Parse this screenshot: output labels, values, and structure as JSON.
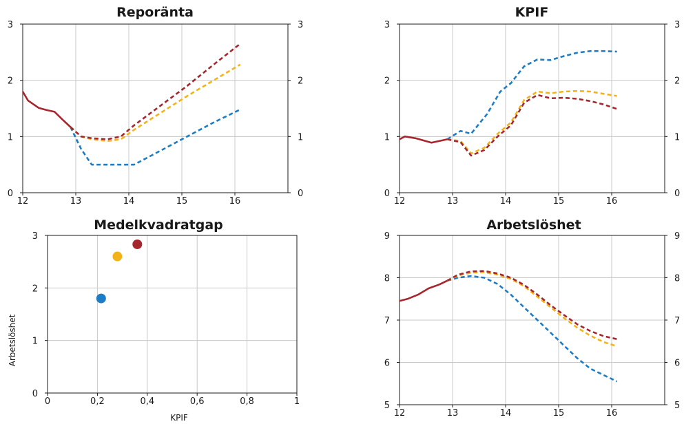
{
  "chart_data": [
    {
      "id": "repo",
      "type": "line",
      "title": "Reporänta",
      "x_ticks": [
        "12",
        "13",
        "14",
        "15",
        "16"
      ],
      "xlim": [
        12,
        17
      ],
      "ylim": [
        0,
        3
      ],
      "y_ticks": [
        "0",
        "1",
        "2",
        "3"
      ],
      "grid": true,
      "series": [
        {
          "color": "#a6262d",
          "dash": "",
          "x": [
            12,
            12.1,
            12.3,
            12.45,
            12.6,
            12.75,
            12.9
          ],
          "y": [
            1.8,
            1.64,
            1.51,
            1.47,
            1.44,
            1.3,
            1.17
          ]
        },
        {
          "color": "#1c7cc4",
          "dash": "6 4",
          "x": [
            12.9,
            13.1,
            13.3,
            13.5,
            13.8,
            14.1,
            14.6,
            15.1,
            15.6,
            16.1
          ],
          "y": [
            1.17,
            0.78,
            0.5,
            0.5,
            0.5,
            0.5,
            0.75,
            1.0,
            1.25,
            1.48
          ]
        },
        {
          "color": "#f2b31a",
          "dash": "6 4",
          "x": [
            12.9,
            13.1,
            13.3,
            13.6,
            13.85,
            14.1,
            14.6,
            15.1,
            15.6,
            16.1
          ],
          "y": [
            1.17,
            1.0,
            0.95,
            0.92,
            0.95,
            1.12,
            1.42,
            1.72,
            2.0,
            2.28
          ]
        },
        {
          "color": "#a6262d",
          "dash": "6 4",
          "x": [
            12.9,
            13.1,
            13.3,
            13.6,
            13.85,
            14.1,
            14.6,
            15.1,
            15.6,
            16.1
          ],
          "y": [
            1.17,
            1.0,
            0.97,
            0.95,
            1.0,
            1.2,
            1.55,
            1.9,
            2.28,
            2.65
          ]
        }
      ]
    },
    {
      "id": "kpif",
      "type": "line",
      "title": "KPIF",
      "x_ticks": [
        "12",
        "13",
        "14",
        "15",
        "16"
      ],
      "xlim": [
        12,
        17
      ],
      "ylim": [
        0,
        3
      ],
      "y_ticks": [
        "0",
        "1",
        "2",
        "3"
      ],
      "grid": true,
      "series": [
        {
          "color": "#a6262d",
          "dash": "",
          "x": [
            12,
            12.1,
            12.3,
            12.6,
            12.9
          ],
          "y": [
            0.95,
            1.0,
            0.97,
            0.89,
            0.95
          ]
        },
        {
          "color": "#1c7cc4",
          "dash": "6 4",
          "x": [
            12.9,
            13.15,
            13.35,
            13.65,
            13.9,
            14.1,
            14.35,
            14.6,
            14.85,
            15.1,
            15.35,
            15.6,
            15.85,
            16.1
          ],
          "y": [
            0.95,
            1.1,
            1.05,
            1.4,
            1.8,
            1.95,
            2.25,
            2.37,
            2.36,
            2.43,
            2.49,
            2.52,
            2.52,
            2.51
          ]
        },
        {
          "color": "#f2b31a",
          "dash": "6 4",
          "x": [
            12.9,
            13.15,
            13.35,
            13.6,
            13.85,
            14.1,
            14.35,
            14.6,
            14.85,
            15.1,
            15.35,
            15.6,
            15.85,
            16.1
          ],
          "y": [
            0.95,
            0.92,
            0.7,
            0.8,
            1.05,
            1.25,
            1.65,
            1.8,
            1.77,
            1.8,
            1.81,
            1.8,
            1.76,
            1.72
          ]
        },
        {
          "color": "#a6262d",
          "dash": "6 4",
          "x": [
            12.9,
            13.15,
            13.35,
            13.6,
            13.85,
            14.1,
            14.35,
            14.6,
            14.85,
            15.1,
            15.35,
            15.6,
            15.85,
            16.1
          ],
          "y": [
            0.95,
            0.9,
            0.66,
            0.76,
            1.0,
            1.2,
            1.6,
            1.74,
            1.68,
            1.69,
            1.67,
            1.63,
            1.57,
            1.49
          ]
        }
      ]
    },
    {
      "id": "gap",
      "type": "scatter",
      "title": "Medelkvadratgap",
      "xlabel": "KPIF",
      "ylabel": "Arbetslöshet",
      "x_ticks": [
        "0",
        "0,2",
        "0,4",
        "0,6",
        "0,8",
        "1"
      ],
      "xlim": [
        0,
        1
      ],
      "ylim": [
        0,
        3
      ],
      "y_ticks": [
        "0",
        "1",
        "2",
        "3"
      ],
      "grid": true,
      "points": [
        {
          "x": 0.215,
          "y": 1.8,
          "color": "#1c7cc4"
        },
        {
          "x": 0.28,
          "y": 2.6,
          "color": "#f2b31a"
        },
        {
          "x": 0.36,
          "y": 2.83,
          "color": "#a6262d"
        }
      ]
    },
    {
      "id": "unemp",
      "type": "line",
      "title": "Arbetslöshet",
      "x_ticks": [
        "12",
        "13",
        "14",
        "15",
        "16"
      ],
      "xlim": [
        12,
        17
      ],
      "ylim": [
        5,
        9
      ],
      "y_ticks": [
        "5",
        "6",
        "7",
        "8",
        "9"
      ],
      "grid": true,
      "series": [
        {
          "color": "#a6262d",
          "dash": "",
          "x": [
            12,
            12.15,
            12.35,
            12.55,
            12.75,
            12.9
          ],
          "y": [
            7.45,
            7.5,
            7.6,
            7.75,
            7.84,
            7.93
          ]
        },
        {
          "color": "#1c7cc4",
          "dash": "6 4",
          "x": [
            12.9,
            13.1,
            13.35,
            13.6,
            13.85,
            14.1,
            14.35,
            14.6,
            14.85,
            15.1,
            15.35,
            15.6,
            15.85,
            16.1
          ],
          "y": [
            7.93,
            8.0,
            8.04,
            8.0,
            7.85,
            7.6,
            7.3,
            7.0,
            6.7,
            6.4,
            6.1,
            5.85,
            5.7,
            5.55
          ]
        },
        {
          "color": "#f2b31a",
          "dash": "6 4",
          "x": [
            12.9,
            13.1,
            13.35,
            13.6,
            13.85,
            14.1,
            14.35,
            14.6,
            14.85,
            15.1,
            15.35,
            15.6,
            15.85,
            16.1
          ],
          "y": [
            7.93,
            8.05,
            8.12,
            8.13,
            8.07,
            7.97,
            7.8,
            7.55,
            7.3,
            7.05,
            6.82,
            6.63,
            6.48,
            6.38
          ]
        },
        {
          "color": "#a6262d",
          "dash": "6 4",
          "x": [
            12.9,
            13.1,
            13.35,
            13.6,
            13.85,
            14.1,
            14.35,
            14.6,
            14.85,
            15.1,
            15.35,
            15.6,
            15.85,
            16.1
          ],
          "y": [
            7.93,
            8.07,
            8.15,
            8.16,
            8.1,
            8.0,
            7.83,
            7.6,
            7.35,
            7.12,
            6.9,
            6.74,
            6.62,
            6.55
          ]
        }
      ]
    }
  ]
}
